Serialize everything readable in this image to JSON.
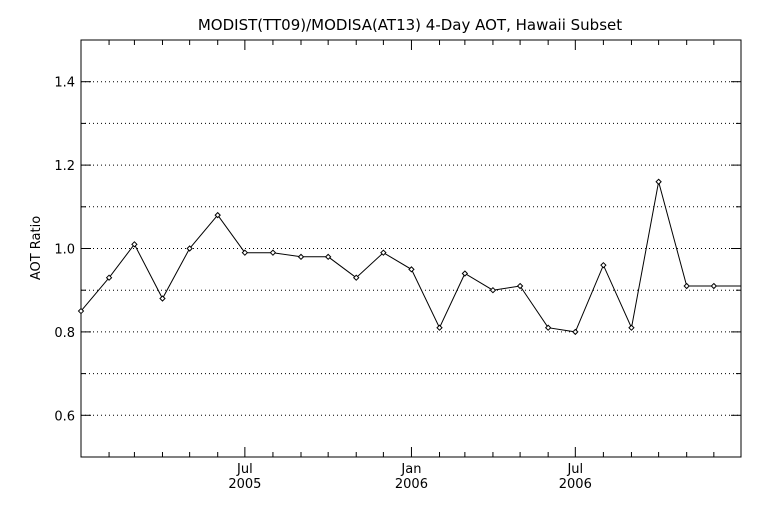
{
  "chart_data": {
    "type": "line",
    "title": "MODIST(TT09)/MODISA(AT13) 4-Day AOT, Hawaii Subset",
    "xlabel": "",
    "ylabel": "AOT Ratio",
    "ylim": [
      0.5,
      1.5
    ],
    "yticks_labeled": [
      "0.6",
      "0.8",
      "1.0",
      "1.2",
      "1.4"
    ],
    "grid": true,
    "xlim": [
      "2005-01-01",
      "2006-12-31"
    ],
    "x_tick_labels": [
      {
        "month": "Jul",
        "year": "2005",
        "date": "2005-07-01"
      },
      {
        "month": "Jan",
        "year": "2006",
        "date": "2006-01-01"
      },
      {
        "month": "Jul",
        "year": "2006",
        "date": "2006-07-01"
      }
    ],
    "series": [
      {
        "x": [
          "2005-01-01",
          "2005-02-01",
          "2005-03-01",
          "2005-04-01",
          "2005-05-01",
          "2005-06-01",
          "2005-07-01",
          "2005-08-01",
          "2005-09-01",
          "2005-10-01",
          "2005-11-01",
          "2005-12-01",
          "2006-01-01",
          "2006-02-01",
          "2006-03-01",
          "2006-04-01",
          "2006-05-01",
          "2006-06-01",
          "2006-07-01",
          "2006-08-01",
          "2006-09-01",
          "2006-10-01",
          "2006-11-01",
          "2006-12-01"
        ],
        "values": [
          0.85,
          0.93,
          1.01,
          0.88,
          1.0,
          1.08,
          0.99,
          0.99,
          0.98,
          0.98,
          0.93,
          0.99,
          0.95,
          0.81,
          0.94,
          0.9,
          0.91,
          0.81,
          0.8,
          0.96,
          0.81,
          1.16,
          0.91,
          0.91
        ]
      }
    ]
  }
}
